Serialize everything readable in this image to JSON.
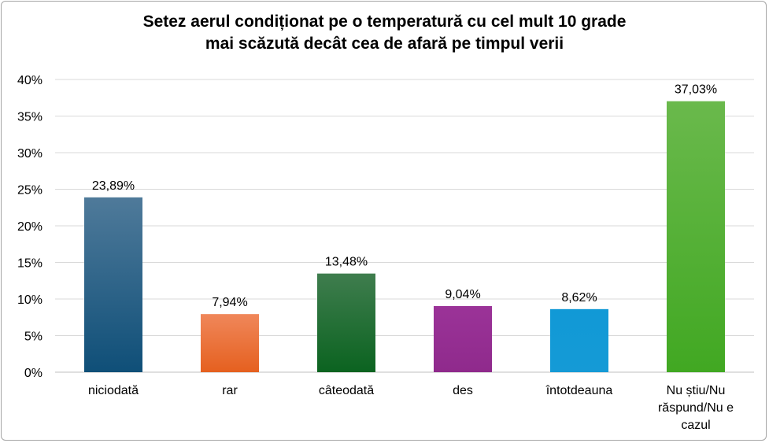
{
  "chart_data": {
    "type": "bar",
    "title_lines": [
      "Setez aerul condiționat pe o temperatură cu cel mult 10 grade",
      "mai scăzută decât cea de afară pe timpul verii"
    ],
    "categories": [
      [
        "niciodată"
      ],
      [
        "rar"
      ],
      [
        "câteodată"
      ],
      [
        "des"
      ],
      [
        "întotdeauna"
      ],
      [
        "Nu știu/Nu",
        "răspund/Nu e",
        "cazul"
      ]
    ],
    "values": [
      23.89,
      7.94,
      13.48,
      9.04,
      8.62,
      37.03
    ],
    "value_labels": [
      "23,89%",
      "7,94%",
      "13,48%",
      "9,04%",
      "8,62%",
      "37,03%"
    ],
    "y_ticks": [
      "0%",
      "5%",
      "10%",
      "15%",
      "20%",
      "25%",
      "30%",
      "35%",
      "40%"
    ],
    "ylim": [
      0,
      40
    ],
    "grid": true,
    "legend": "none",
    "bar_colors": [
      [
        "#4f7a9a",
        "#0f4f78"
      ],
      [
        "#f0875a",
        "#e5601f"
      ],
      [
        "#3f7d4e",
        "#0b6320"
      ],
      [
        "#9b3398",
        "#8f2a8c"
      ],
      [
        "#1199d6",
        "#159ad6"
      ],
      [
        "#6ab94c",
        "#41a822"
      ]
    ],
    "grid_color": "#d9d9d9",
    "axis_color": "#bfbfbf"
  }
}
